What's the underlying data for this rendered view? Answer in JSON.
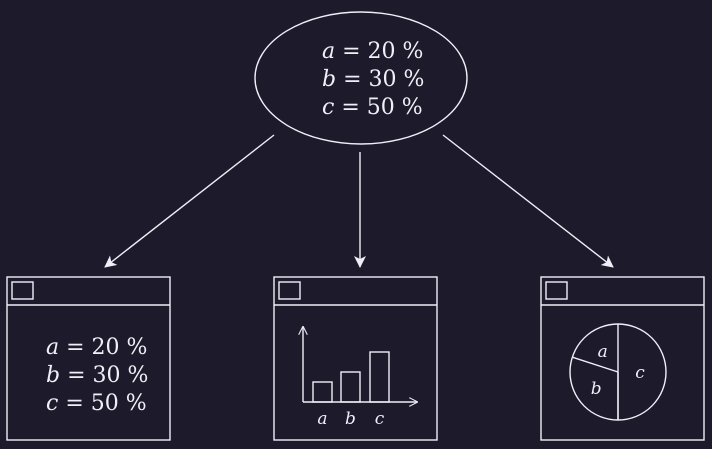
{
  "model": {
    "values": [
      {
        "var": "a",
        "value": 20,
        "unit": "%"
      },
      {
        "var": "b",
        "value": 30,
        "unit": "%"
      },
      {
        "var": "c",
        "value": 50,
        "unit": "%"
      }
    ]
  },
  "views": {
    "text_view": {
      "lines": [
        {
          "var": "a",
          "value": 20,
          "unit": "%"
        },
        {
          "var": "b",
          "value": 30,
          "unit": "%"
        },
        {
          "var": "c",
          "value": 50,
          "unit": "%"
        }
      ]
    },
    "bar_view": {
      "categories": [
        "a",
        "b",
        "c"
      ],
      "values": [
        20,
        30,
        50
      ]
    },
    "pie_view": {
      "slices": [
        {
          "label": "a",
          "value": 20
        },
        {
          "label": "b",
          "value": 30
        },
        {
          "label": "c",
          "value": 50
        }
      ]
    }
  },
  "colors": {
    "background": "#1c1a2b",
    "foreground": "#f2eef7"
  }
}
